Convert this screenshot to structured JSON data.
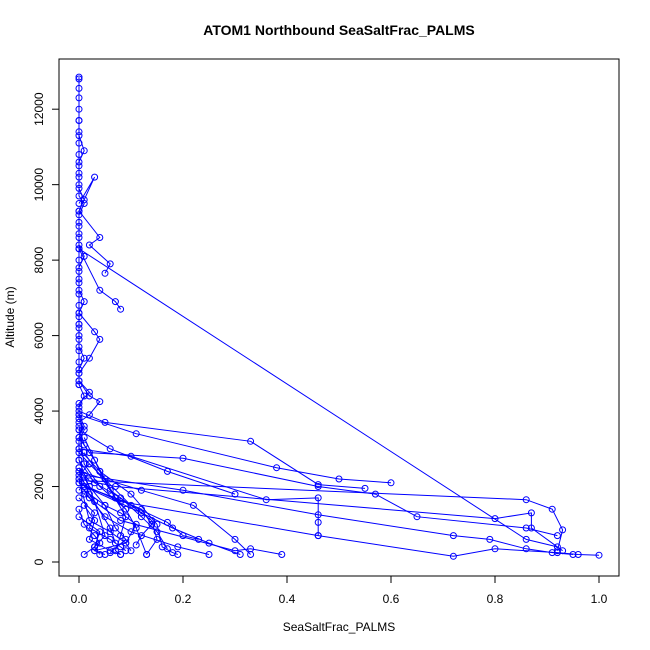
{
  "chart_data": {
    "type": "line",
    "title": "ATOM1 Northbound SeaSaltFrac_PALMS",
    "xlabel": "SeaSaltFrac_PALMS",
    "ylabel": "Altitude (m)",
    "xlim": [
      0,
      1.0
    ],
    "ylim": [
      0,
      12800
    ],
    "xticks": [
      0.0,
      0.2,
      0.4,
      0.6,
      0.8,
      1.0
    ],
    "xtick_labels": [
      "0.0",
      "0.2",
      "0.4",
      "0.6",
      "0.8",
      "1.0"
    ],
    "yticks": [
      0,
      2000,
      4000,
      6000,
      8000,
      10000,
      12000
    ],
    "ytick_labels": [
      "0",
      "2000",
      "4000",
      "6000",
      "8000",
      "10000",
      "12000"
    ],
    "grid": false,
    "marker": "open-circle",
    "color": "#0000ff",
    "series": [
      {
        "x": [
          0.0,
          0.0,
          0.0,
          0.0,
          0.0,
          0.0,
          0.0,
          0.0,
          0.0,
          0.0,
          0.0,
          0.0,
          0.0,
          0.01,
          0.0,
          0.0,
          0.0,
          0.0,
          0.0,
          0.0,
          0.0,
          0.0,
          0.0,
          0.0,
          0.0,
          0.0,
          0.0,
          0.0,
          0.0,
          0.0
        ],
        "y": [
          12850,
          12800,
          12550,
          12300,
          12000,
          11700,
          11400,
          11100,
          10800,
          10500,
          10300,
          10000,
          9700,
          9500,
          9200,
          8900,
          8600,
          8300,
          8000,
          7700,
          7400,
          7100,
          6800,
          6500,
          6200,
          5900,
          5600,
          5300,
          5000,
          4700
        ]
      },
      {
        "x": [
          0.0,
          0.0,
          0.01,
          0.0,
          0.0,
          0.0,
          0.01,
          0.0,
          0.0,
          0.0,
          0.0,
          0.01,
          0.0,
          0.0,
          0.0,
          0.01,
          0.0,
          0.0
        ],
        "y": [
          11700,
          11300,
          10900,
          10600,
          10200,
          9900,
          9600,
          9300,
          9000,
          8700,
          8400,
          8100,
          7800,
          7500,
          7200,
          6900,
          6600,
          6300
        ]
      },
      {
        "x": [
          0.0,
          0.0,
          0.0,
          0.01,
          0.0,
          0.0,
          0.02,
          0.0,
          0.0,
          0.01,
          0.0,
          0.0,
          0.0
        ],
        "y": [
          6300,
          6000,
          5700,
          5400,
          5100,
          4800,
          4500,
          4200,
          3900,
          3600,
          3300,
          3000,
          2700
        ]
      },
      {
        "x": [
          0.0,
          0.01,
          0.0,
          0.0,
          0.01,
          0.0,
          0.0,
          0.02,
          0.0,
          0.01,
          0.0
        ],
        "y": [
          4700,
          4400,
          4100,
          3800,
          3500,
          3200,
          2900,
          2600,
          2300,
          2100,
          1900
        ]
      },
      {
        "x": [
          0.0,
          0.03,
          0.0,
          0.04,
          0.02,
          0.06,
          0.05
        ],
        "y": [
          9500,
          10200,
          9300,
          8600,
          8400,
          7900,
          7650
        ]
      },
      {
        "x": [
          0.0,
          0.04,
          0.07,
          0.08
        ],
        "y": [
          8300,
          7200,
          6900,
          6700
        ]
      },
      {
        "x": [
          0.0,
          0.03,
          0.04,
          0.02,
          0.0
        ],
        "y": [
          6600,
          6100,
          5900,
          5400,
          5000
        ]
      },
      {
        "x": [
          0.0,
          0.02,
          0.04,
          0.02,
          0.0
        ],
        "y": [
          4800,
          4400,
          4250,
          3900,
          3700
        ]
      },
      {
        "x": [
          0.0,
          0.05,
          0.33,
          0.46,
          0.55
        ],
        "y": [
          4000,
          3700,
          3200,
          2050,
          1950
        ]
      },
      {
        "x": [
          0.0,
          0.02,
          0.2,
          0.46,
          0.57,
          0.65,
          0.86,
          0.92
        ],
        "y": [
          3300,
          2900,
          2750,
          2000,
          1800,
          1200,
          900,
          700
        ]
      },
      {
        "x": [
          0.0,
          0.1,
          0.36,
          0.46,
          0.46,
          0.46
        ],
        "y": [
          3000,
          2800,
          1650,
          1700,
          1050,
          700
        ]
      },
      {
        "x": [
          0.0,
          0.02,
          0.86,
          0.91,
          0.93,
          0.92
        ],
        "y": [
          2500,
          2150,
          1650,
          1400,
          850,
          300
        ]
      },
      {
        "x": [
          0.0,
          0.07,
          0.8,
          0.87,
          0.87,
          0.93
        ],
        "y": [
          2200,
          2000,
          1150,
          1300,
          900,
          300
        ]
      },
      {
        "x": [
          0.01,
          0.2,
          0.46,
          0.72,
          0.79,
          0.86,
          0.91,
          0.95
        ],
        "y": [
          2300,
          1900,
          1250,
          700,
          600,
          350,
          250,
          200
        ]
      },
      {
        "x": [
          0.0,
          0.08,
          0.46,
          0.72,
          0.8,
          0.92,
          0.96,
          1.0
        ],
        "y": [
          2100,
          1600,
          700,
          150,
          350,
          250,
          200,
          180
        ]
      },
      {
        "x": [
          0.01,
          0.08,
          0.3,
          0.33,
          0.39
        ],
        "y": [
          1800,
          1100,
          300,
          350,
          200
        ]
      },
      {
        "x": [
          0.01,
          0.12,
          0.18,
          0.25,
          0.31
        ],
        "y": [
          2000,
          1300,
          900,
          500,
          200
        ]
      },
      {
        "x": [
          0.02,
          0.1,
          0.17,
          0.2,
          0.23
        ],
        "y": [
          2600,
          1500,
          1050,
          700,
          600
        ]
      },
      {
        "x": [
          0.01,
          0.06,
          0.14,
          0.15,
          0.13
        ],
        "y": [
          2900,
          1900,
          1100,
          600,
          200
        ]
      },
      {
        "x": [
          0.01,
          0.04,
          0.09,
          0.08,
          0.07,
          0.08
        ],
        "y": [
          3300,
          2400,
          1200,
          700,
          300,
          200
        ]
      },
      {
        "x": [
          0.0,
          0.03,
          0.05,
          0.03,
          0.04
        ],
        "y": [
          2700,
          1600,
          700,
          400,
          200
        ]
      },
      {
        "x": [
          0.0,
          0.02,
          0.06,
          0.09,
          0.1
        ],
        "y": [
          2200,
          1100,
          800,
          500,
          300
        ]
      },
      {
        "x": [
          0.01,
          0.03,
          0.02,
          0.06,
          0.08
        ],
        "y": [
          1500,
          1100,
          600,
          300,
          200
        ]
      },
      {
        "x": [
          0.0,
          0.04,
          0.03,
          0.01
        ],
        "y": [
          1200,
          800,
          400,
          200
        ]
      },
      {
        "x": [
          0.0,
          0.02,
          0.06,
          0.07
        ],
        "y": [
          2400,
          1800,
          900,
          500
        ]
      },
      {
        "x": [
          0.0,
          0.01,
          0.04,
          0.09,
          0.11,
          0.13
        ],
        "y": [
          3500,
          2600,
          2000,
          1400,
          900,
          200
        ]
      },
      {
        "x": [
          0.0,
          0.03,
          0.08,
          0.12,
          0.15,
          0.17
        ],
        "y": [
          2700,
          2100,
          1700,
          1200,
          800,
          350
        ]
      },
      {
        "x": [
          0.0,
          0.04,
          0.1,
          0.15,
          0.16,
          0.18,
          0.19
        ],
        "y": [
          3000,
          2400,
          1800,
          1000,
          400,
          250,
          200
        ]
      },
      {
        "x": [
          0.01,
          0.05,
          0.08,
          0.11,
          0.09,
          0.03
        ],
        "y": [
          1900,
          1500,
          1300,
          1000,
          500,
          300
        ]
      },
      {
        "x": [
          0.0,
          0.02,
          0.05,
          0.07,
          0.09,
          0.06
        ],
        "y": [
          2500,
          2000,
          1500,
          900,
          600,
          250
        ]
      },
      {
        "x": [
          0.01,
          0.07,
          0.12,
          0.14,
          0.12,
          0.11
        ],
        "y": [
          2000,
          1700,
          1400,
          1000,
          700,
          450
        ]
      },
      {
        "x": [
          0.0,
          0.01,
          0.03,
          0.05,
          0.07,
          0.09
        ],
        "y": [
          3600,
          3100,
          2700,
          2200,
          1700,
          1400
        ]
      },
      {
        "x": [
          0.0,
          0.12,
          0.22,
          0.3,
          0.33
        ],
        "y": [
          2400,
          1900,
          1500,
          600,
          200
        ]
      },
      {
        "x": [
          0.0,
          0.03,
          0.02,
          0.06,
          0.08,
          0.09
        ],
        "y": [
          1700,
          1300,
          900,
          600,
          400,
          300
        ]
      },
      {
        "x": [
          0.0,
          0.02,
          0.05,
          0.1,
          0.19,
          0.25
        ],
        "y": [
          2100,
          1700,
          1200,
          800,
          400,
          200
        ]
      },
      {
        "x": [
          0.0,
          0.01,
          0.03,
          0.04,
          0.03,
          0.05
        ],
        "y": [
          1400,
          1000,
          700,
          500,
          300,
          200
        ]
      },
      {
        "x": [
          0.0,
          0.11,
          0.38,
          0.5,
          0.6
        ],
        "y": [
          3900,
          3400,
          2500,
          2200,
          2100
        ]
      },
      {
        "x": [
          0.0,
          0.06,
          0.17,
          0.3
        ],
        "y": [
          3500,
          3000,
          2400,
          1800
        ]
      },
      {
        "x": [
          0.0,
          0.86,
          0.92
        ],
        "y": [
          8300,
          600,
          400
        ]
      }
    ]
  }
}
